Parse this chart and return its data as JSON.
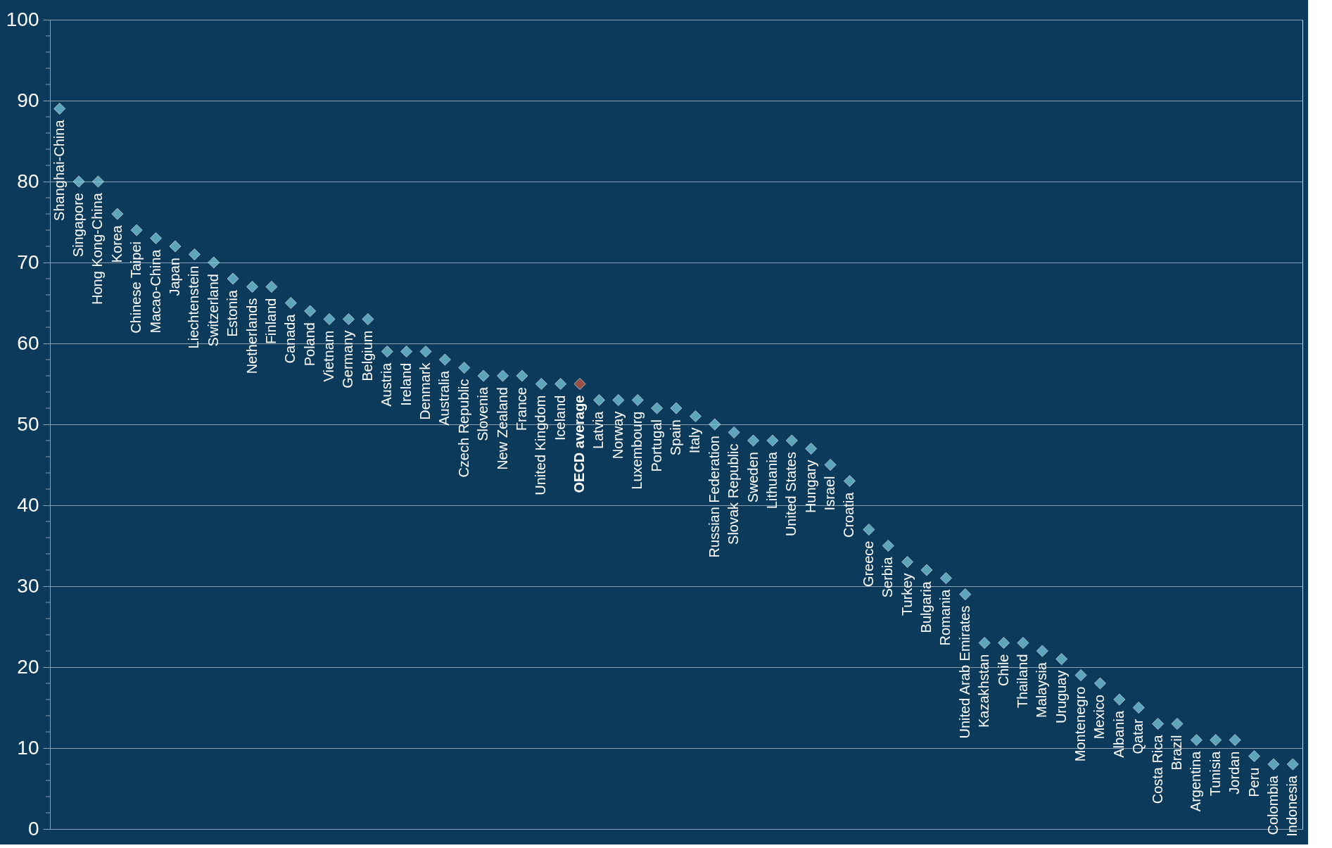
{
  "chart_data": {
    "type": "scatter",
    "categories": [
      "Shanghai-China",
      "Singapore",
      "Hong Kong-China",
      "Korea",
      "Chinese Taipei",
      "Macao-China",
      "Japan",
      "Liechtenstein",
      "Switzerland",
      "Estonia",
      "Netherlands",
      "Finland",
      "Canada",
      "Poland",
      "Vietnam",
      "Germany",
      "Belgium",
      "Austria",
      "Ireland",
      "Denmark",
      "Australia",
      "Czech Republic",
      "Slovenia",
      "New Zealand",
      "France",
      "United Kingdom",
      "Iceland",
      "OECD average",
      "Latvia",
      "Norway",
      "Luxembourg",
      "Portugal",
      "Spain",
      "Italy",
      "Russian Federation",
      "Slovak Republic",
      "Sweden",
      "Lithuania",
      "United States",
      "Hungary",
      "Israel",
      "Croatia",
      "Greece",
      "Serbia",
      "Turkey",
      "Bulgaria",
      "Romania",
      "United Arab Emirates",
      "Kazakhstan",
      "Chile",
      "Thailand",
      "Malaysia",
      "Uruguay",
      "Montenegro",
      "Mexico",
      "Albania",
      "Qatar",
      "Costa Rica",
      "Brazil",
      "Argentina",
      "Tunisia",
      "Jordan",
      "Peru",
      "Colombia",
      "Indonesia"
    ],
    "series": [
      {
        "color": "#7fd3e3",
        "colors": [
          "#7fd3e3",
          "#7fd3e3",
          "#7fd3e3",
          "#7fd3e3",
          "#7fd3e3",
          "#7fd3e3",
          "#7fd3e3",
          "#7fd3e3",
          "#7fd3e3",
          "#7fd3e3",
          "#7fd3e3",
          "#7fd3e3",
          "#7fd3e3",
          "#7fd3e3",
          "#7fd3e3",
          "#7fd3e3",
          "#7fd3e3",
          "#7fd3e3",
          "#7fd3e3",
          "#7fd3e3",
          "#7fd3e3",
          "#7fd3e3",
          "#7fd3e3",
          "#7fd3e3",
          "#7fd3e3",
          "#7fd3e3",
          "#7fd3e3",
          "#d9593a",
          "#7fd3e3",
          "#7fd3e3",
          "#7fd3e3",
          "#7fd3e3",
          "#7fd3e3",
          "#7fd3e3",
          "#7fd3e3",
          "#7fd3e3",
          "#7fd3e3",
          "#7fd3e3",
          "#7fd3e3",
          "#7fd3e3",
          "#7fd3e3",
          "#7fd3e3",
          "#7fd3e3",
          "#7fd3e3",
          "#7fd3e3",
          "#7fd3e3",
          "#7fd3e3",
          "#7fd3e3",
          "#7fd3e3",
          "#7fd3e3",
          "#7fd3e3",
          "#7fd3e3",
          "#7fd3e3",
          "#7fd3e3",
          "#7fd3e3",
          "#7fd3e3",
          "#7fd3e3",
          "#7fd3e3",
          "#7fd3e3",
          "#7fd3e3",
          "#7fd3e3",
          "#7fd3e3",
          "#7fd3e3",
          "#7fd3e3",
          "#7fd3e3"
        ],
        "values": [
          89,
          80,
          80,
          76,
          74,
          73,
          72,
          71,
          70,
          68,
          67,
          67,
          65,
          64,
          63,
          63,
          63,
          59,
          59,
          59,
          58,
          57,
          56,
          56,
          56,
          55,
          55,
          55,
          53,
          53,
          53,
          52,
          52,
          51,
          50,
          49,
          48,
          48,
          48,
          47,
          45,
          43,
          37,
          35,
          33,
          32,
          31,
          29,
          23,
          23,
          23,
          22,
          21,
          19,
          18,
          16,
          15,
          13,
          13,
          11,
          11,
          11,
          9,
          8,
          8
        ]
      }
    ],
    "ylim": [
      0,
      100
    ],
    "yticks": [
      0,
      {
        "value": 2,
        "label": null
      },
      {
        "value": 4,
        "label": null
      },
      {
        "value": 6,
        "label": null
      },
      {
        "value": 8,
        "label": null
      },
      10,
      {
        "value": 12,
        "label": null
      },
      {
        "value": 14,
        "label": null
      },
      {
        "value": 16,
        "label": null
      },
      {
        "value": 18,
        "label": null
      },
      20,
      {
        "value": 22,
        "label": null
      },
      {
        "value": 24,
        "label": null
      },
      {
        "value": 26,
        "label": null
      },
      {
        "value": 28,
        "label": null
      },
      30,
      {
        "value": 32,
        "label": null
      },
      {
        "value": 34,
        "label": null
      },
      {
        "value": 36,
        "label": null
      },
      {
        "value": 38,
        "label": null
      },
      40,
      {
        "value": 42,
        "label": null
      },
      {
        "value": 44,
        "label": null
      },
      {
        "value": 46,
        "label": null
      },
      {
        "value": 48,
        "label": null
      },
      50,
      {
        "value": 52,
        "label": null
      },
      {
        "value": 54,
        "label": null
      },
      {
        "value": 56,
        "label": null
      },
      {
        "value": 58,
        "label": null
      },
      60,
      {
        "value": 62,
        "label": null
      },
      {
        "value": 64,
        "label": null
      },
      {
        "value": 66,
        "label": null
      },
      {
        "value": 68,
        "label": null
      },
      70,
      {
        "value": 72,
        "label": null
      },
      {
        "value": 74,
        "label": null
      },
      {
        "value": 76,
        "label": null
      },
      {
        "value": 78,
        "label": null
      },
      80,
      {
        "value": 82,
        "label": null
      },
      {
        "value": 84,
        "label": null
      },
      {
        "value": 86,
        "label": null
      },
      {
        "value": 88,
        "label": null
      },
      90,
      {
        "value": 92,
        "label": null
      },
      {
        "value": 94,
        "label": null
      },
      {
        "value": 96,
        "label": null
      },
      {
        "value": 98,
        "label": null
      },
      100
    ],
    "grid": "y",
    "marker": "diamond",
    "tick_labels": "y"
  }
}
